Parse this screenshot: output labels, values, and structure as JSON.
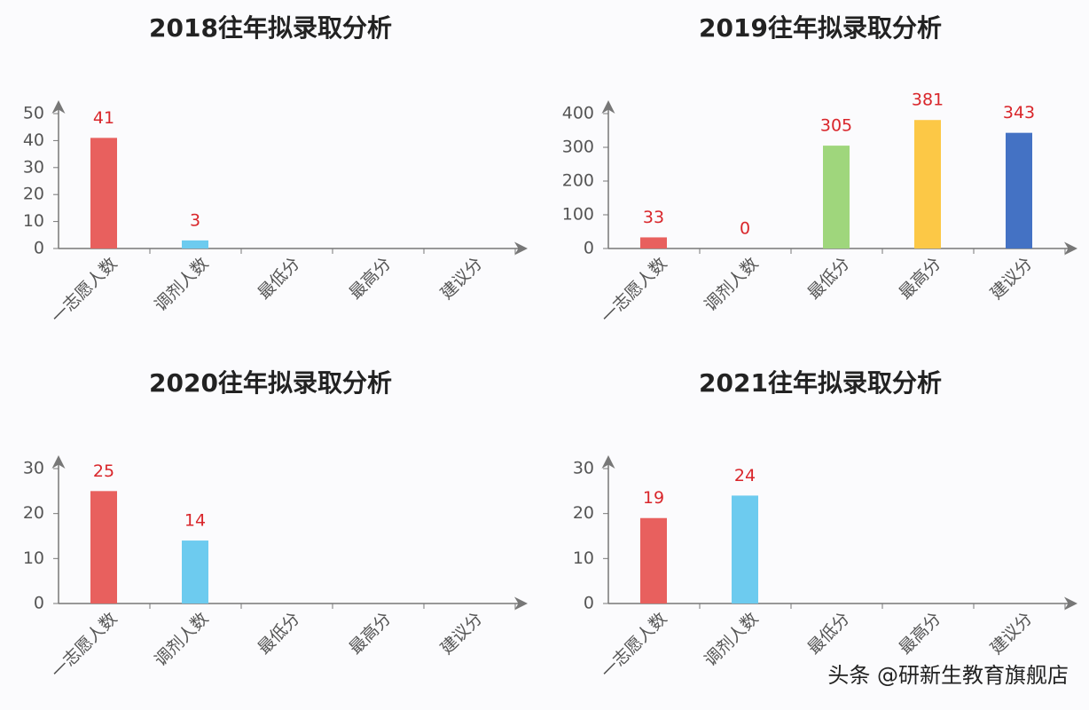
{
  "chart_data": [
    {
      "type": "bar",
      "title": "2018往年拟录取分析",
      "categories": [
        "一志愿人数",
        "调剂人数",
        "最低分",
        "最高分",
        "建议分"
      ],
      "values": [
        41,
        3,
        null,
        null,
        null
      ],
      "colors": [
        "#e8605e",
        "#6dcbef",
        "#9fd67c",
        "#fcc846",
        "#4472c4"
      ],
      "ylim": [
        0,
        50
      ],
      "yticks": [
        0,
        10,
        20,
        30,
        40,
        50
      ]
    },
    {
      "type": "bar",
      "title": "2019往年拟录取分析",
      "categories": [
        "一志愿人数",
        "调剂人数",
        "最低分",
        "最高分",
        "建议分"
      ],
      "values": [
        33,
        0,
        305,
        381,
        343
      ],
      "colors": [
        "#e8605e",
        "#6dcbef",
        "#9fd67c",
        "#fcc846",
        "#4472c4"
      ],
      "ylim": [
        0,
        400
      ],
      "yticks": [
        0,
        100,
        200,
        300,
        400
      ]
    },
    {
      "type": "bar",
      "title": "2020往年拟录取分析",
      "categories": [
        "一志愿人数",
        "调剂人数",
        "最低分",
        "最高分",
        "建议分"
      ],
      "values": [
        25,
        14,
        null,
        null,
        null
      ],
      "colors": [
        "#e8605e",
        "#6dcbef",
        "#9fd67c",
        "#fcc846",
        "#4472c4"
      ],
      "ylim": [
        0,
        30
      ],
      "yticks": [
        0,
        10,
        20,
        30
      ]
    },
    {
      "type": "bar",
      "title": "2021往年拟录取分析",
      "categories": [
        "一志愿人数",
        "调剂人数",
        "最低分",
        "最高分",
        "建议分"
      ],
      "values": [
        19,
        24,
        null,
        null,
        null
      ],
      "colors": [
        "#e8605e",
        "#6dcbef",
        "#9fd67c",
        "#fcc846",
        "#4472c4"
      ],
      "ylim": [
        0,
        30
      ],
      "yticks": [
        0,
        10,
        20,
        30
      ]
    }
  ],
  "watermark": "头条 @研新生教育旗舰店"
}
